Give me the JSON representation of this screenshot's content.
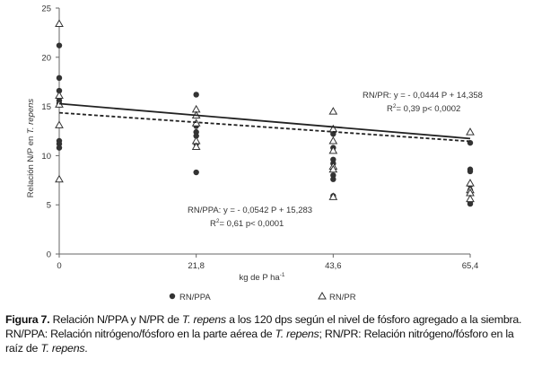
{
  "chart_data": {
    "type": "scatter",
    "xlabel": "kg de P ha",
    "xlabel_sup": "-1",
    "ylabel": "Relación N/P en",
    "ylabel_italic": "T. repens",
    "x_ticks": [
      "0",
      "21,8",
      "43,6",
      "65,4"
    ],
    "x_values": [
      0,
      21.8,
      43.6,
      65.4
    ],
    "ylim": [
      0,
      25
    ],
    "y_ticks": [
      0,
      5,
      10,
      15,
      20,
      25
    ],
    "grid": false,
    "legend_position": "bottom",
    "series": [
      {
        "name": "RN/PPA",
        "marker": "circle",
        "color": "#333333",
        "points": [
          [
            0,
            21.2
          ],
          [
            0,
            17.9
          ],
          [
            0,
            16.6
          ],
          [
            0,
            15.6
          ],
          [
            0,
            15.3
          ],
          [
            0,
            11.5
          ],
          [
            0,
            11.2
          ],
          [
            0,
            10.8
          ],
          [
            21.8,
            16.2
          ],
          [
            21.8,
            13.0
          ],
          [
            21.8,
            12.4
          ],
          [
            21.8,
            12.0
          ],
          [
            21.8,
            11.3
          ],
          [
            21.8,
            11.2
          ],
          [
            21.8,
            8.3
          ],
          [
            43.6,
            12.4
          ],
          [
            43.6,
            12.2
          ],
          [
            43.6,
            10.8
          ],
          [
            43.6,
            9.6
          ],
          [
            43.6,
            9.2
          ],
          [
            43.6,
            8.0
          ],
          [
            43.6,
            7.6
          ],
          [
            43.6,
            5.9
          ],
          [
            65.4,
            11.3
          ],
          [
            65.4,
            8.6
          ],
          [
            65.4,
            8.4
          ],
          [
            65.4,
            7.0
          ],
          [
            65.4,
            6.5
          ],
          [
            65.4,
            5.3
          ],
          [
            65.4,
            5.1
          ]
        ],
        "trend": {
          "slope": -0.0542,
          "intercept": 15.283,
          "line_style": "solid"
        },
        "equation_label": "RN/PPA: y = - 0,0542 P + 15,283",
        "r2_label": "= 0,61  p< 0,0001"
      },
      {
        "name": "RN/PR",
        "marker": "triangle",
        "color": "#333333",
        "points": [
          [
            0,
            23.4
          ],
          [
            0,
            16.1
          ],
          [
            0,
            15.2
          ],
          [
            0,
            13.1
          ],
          [
            0,
            7.6
          ],
          [
            21.8,
            14.7
          ],
          [
            21.8,
            14.1
          ],
          [
            21.8,
            13.3
          ],
          [
            21.8,
            11.5
          ],
          [
            21.8,
            10.9
          ],
          [
            43.6,
            14.5
          ],
          [
            43.6,
            12.7
          ],
          [
            43.6,
            11.5
          ],
          [
            43.6,
            10.5
          ],
          [
            43.6,
            8.9
          ],
          [
            43.6,
            8.6
          ],
          [
            43.6,
            5.8
          ],
          [
            65.4,
            12.4
          ],
          [
            65.4,
            7.2
          ],
          [
            65.4,
            6.5
          ],
          [
            65.4,
            6.2
          ],
          [
            65.4,
            5.6
          ]
        ],
        "trend": {
          "slope": -0.0444,
          "intercept": 14.358,
          "line_style": "dashed"
        },
        "equation_label": "RN/PR: y = - 0,0444 P + 14,358",
        "r2_label": "= 0,39  p< 0,0002"
      }
    ]
  },
  "caption": {
    "fig_label": "Figura 7.",
    "part1": " Relación N/PPA y N/PR de ",
    "species1": "T. repens",
    "part2": " a los 120 dps según el nivel de fósforo agregado a la siembra. RN/PPA: Relación nitrógeno/fósforo en la parte aérea de ",
    "species2": "T. repens",
    "part3": "; RN/PR: Relación nitrógeno/fósforo en la raíz de ",
    "species3": "T. repens",
    "part4": "."
  }
}
